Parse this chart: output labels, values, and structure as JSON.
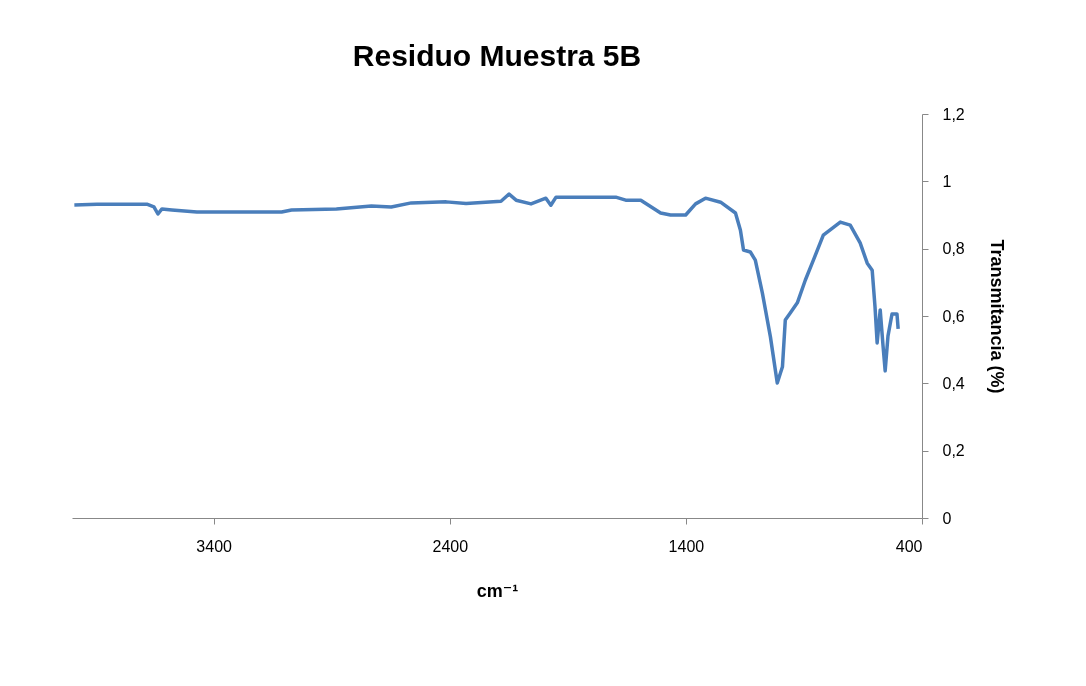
{
  "chart_data": {
    "type": "line",
    "title": "Residuo Muestra 5B",
    "xlabel": "cm⁻¹",
    "ylabel": "Transmitancia (%)",
    "xlim": [
      4000,
      400
    ],
    "xticks": [
      3400,
      2400,
      1400,
      400
    ],
    "ylim": [
      0,
      1.2
    ],
    "yticks": [
      0,
      {
        "value": 0.2,
        "label": "0,2"
      },
      {
        "value": 0.4,
        "label": "0,4"
      },
      {
        "value": 0.6,
        "label": "0,6"
      },
      {
        "value": 0.8,
        "label": "0,8"
      },
      1,
      {
        "value": 1.2,
        "label": "1,2"
      }
    ],
    "grid": false,
    "series": [
      {
        "color": "#4a7ebb",
        "x": [
          3990,
          3894,
          3683,
          3653,
          3636,
          3619,
          3577,
          3471,
          3112,
          3070,
          2880,
          2732,
          2648,
          2563,
          2415,
          2331,
          2183,
          2149,
          2119,
          2056,
          1993,
          1972,
          1950,
          1760,
          1697,
          1655,
          1591,
          1507,
          1465,
          1401,
          1359,
          1317,
          1253,
          1190,
          1169,
          1156,
          1127,
          1106,
          1076,
          1042,
          1013,
          991,
          979,
          958,
          928,
          894,
          860,
          818,
          746,
          704,
          662,
          632,
          611,
          599,
          590,
          577,
          565,
          556,
          544,
          527,
          506,
          501
        ],
        "values": [
          0.93,
          0.932,
          0.932,
          0.924,
          0.903,
          0.918,
          0.915,
          0.909,
          0.909,
          0.915,
          0.918,
          0.927,
          0.924,
          0.936,
          0.939,
          0.934,
          0.941,
          0.962,
          0.944,
          0.933,
          0.95,
          0.929,
          0.953,
          0.953,
          0.953,
          0.944,
          0.944,
          0.906,
          0.9,
          0.9,
          0.933,
          0.95,
          0.938,
          0.906,
          0.855,
          0.796,
          0.79,
          0.766,
          0.668,
          0.538,
          0.401,
          0.449,
          0.588,
          0.609,
          0.639,
          0.707,
          0.766,
          0.84,
          0.879,
          0.87,
          0.817,
          0.757,
          0.736,
          0.627,
          0.52,
          0.618,
          0.511,
          0.437,
          0.541,
          0.606,
          0.606,
          0.562
        ]
      }
    ]
  }
}
